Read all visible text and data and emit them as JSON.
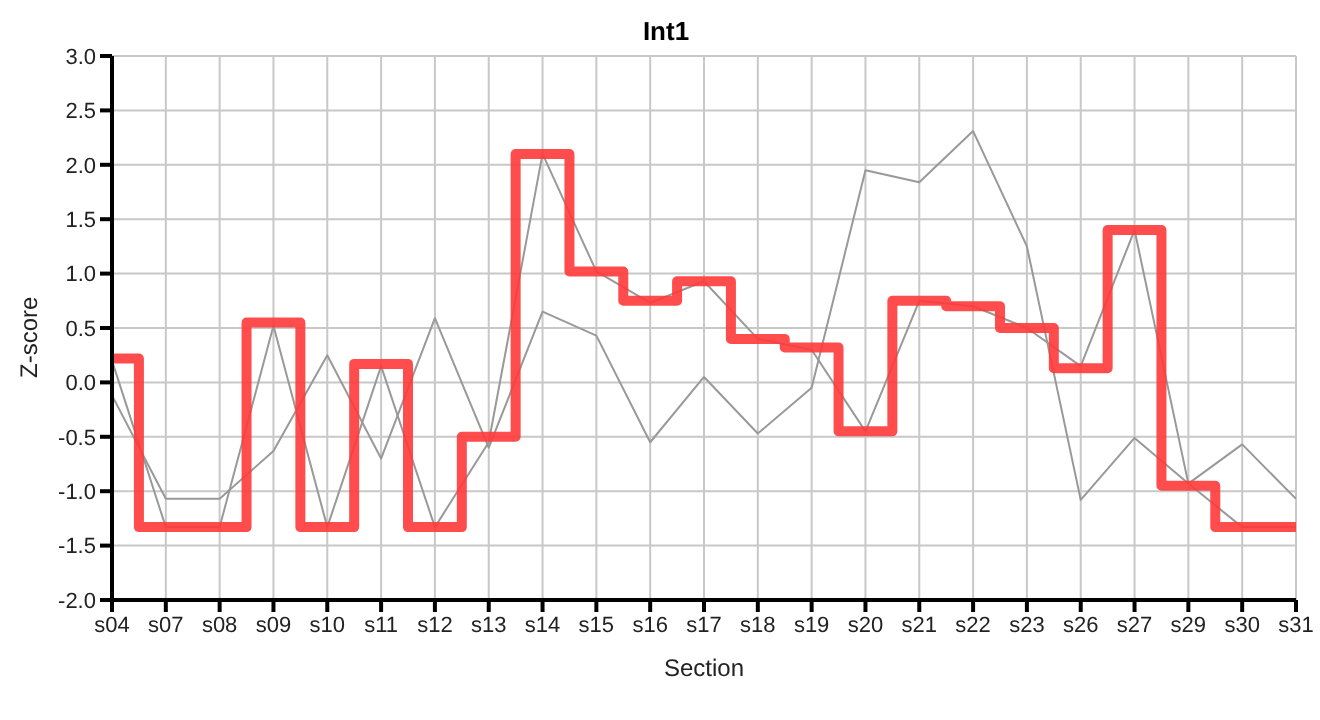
{
  "chart_data": {
    "type": "line",
    "title": "Int1",
    "xlabel": "Section",
    "ylabel": "Z-score",
    "categories": [
      "s04",
      "s07",
      "s08",
      "s09",
      "s10",
      "s11",
      "s12",
      "s13",
      "s14",
      "s15",
      "s16",
      "s17",
      "s18",
      "s19",
      "s20",
      "s21",
      "s22",
      "s23",
      "s26",
      "s27",
      "s29",
      "s30",
      "s31"
    ],
    "series": [
      {
        "color": "#999999",
        "values": [
          0.2,
          -1.33,
          -1.33,
          0.52,
          -1.33,
          0.15,
          -1.33,
          -0.55,
          2.1,
          1.02,
          0.73,
          0.93,
          0.4,
          0.3,
          -0.45,
          0.75,
          0.7,
          0.5,
          0.15,
          1.4,
          -0.93,
          -1.33,
          -1.33
        ]
      },
      {
        "color": "#999999",
        "values": [
          -0.12,
          -1.07,
          -1.07,
          -0.63,
          0.25,
          -0.7,
          0.59,
          -0.6,
          0.65,
          0.43,
          -0.55,
          0.05,
          -0.47,
          -0.05,
          1.95,
          1.84,
          2.31,
          1.25,
          -1.08,
          -0.51,
          -0.93,
          -0.57,
          -1.07
        ]
      },
      {
        "type": "step",
        "color": "#ff3a3a",
        "values": [
          0.22,
          -1.33,
          -1.33,
          0.55,
          -1.33,
          0.17,
          -1.33,
          -0.5,
          2.1,
          1.02,
          0.75,
          0.93,
          0.4,
          0.32,
          -0.45,
          0.75,
          0.7,
          0.5,
          0.13,
          1.4,
          -0.95,
          -1.33,
          -1.33
        ]
      }
    ],
    "ylim": [
      -2,
      3
    ],
    "yticks": [
      {
        "value": -2,
        "label": "-2.0"
      },
      -1.5,
      {
        "value": -1,
        "label": "-1.0"
      },
      -0.5,
      {
        "value": 0,
        "label": "0.0"
      },
      0.5,
      {
        "value": 1,
        "label": "1.0"
      },
      1.5,
      {
        "value": 2,
        "label": "2.0"
      },
      2.5,
      {
        "value": 3,
        "label": "3.0"
      }
    ],
    "grid": true,
    "marker": "none",
    "line_style": "solid"
  }
}
